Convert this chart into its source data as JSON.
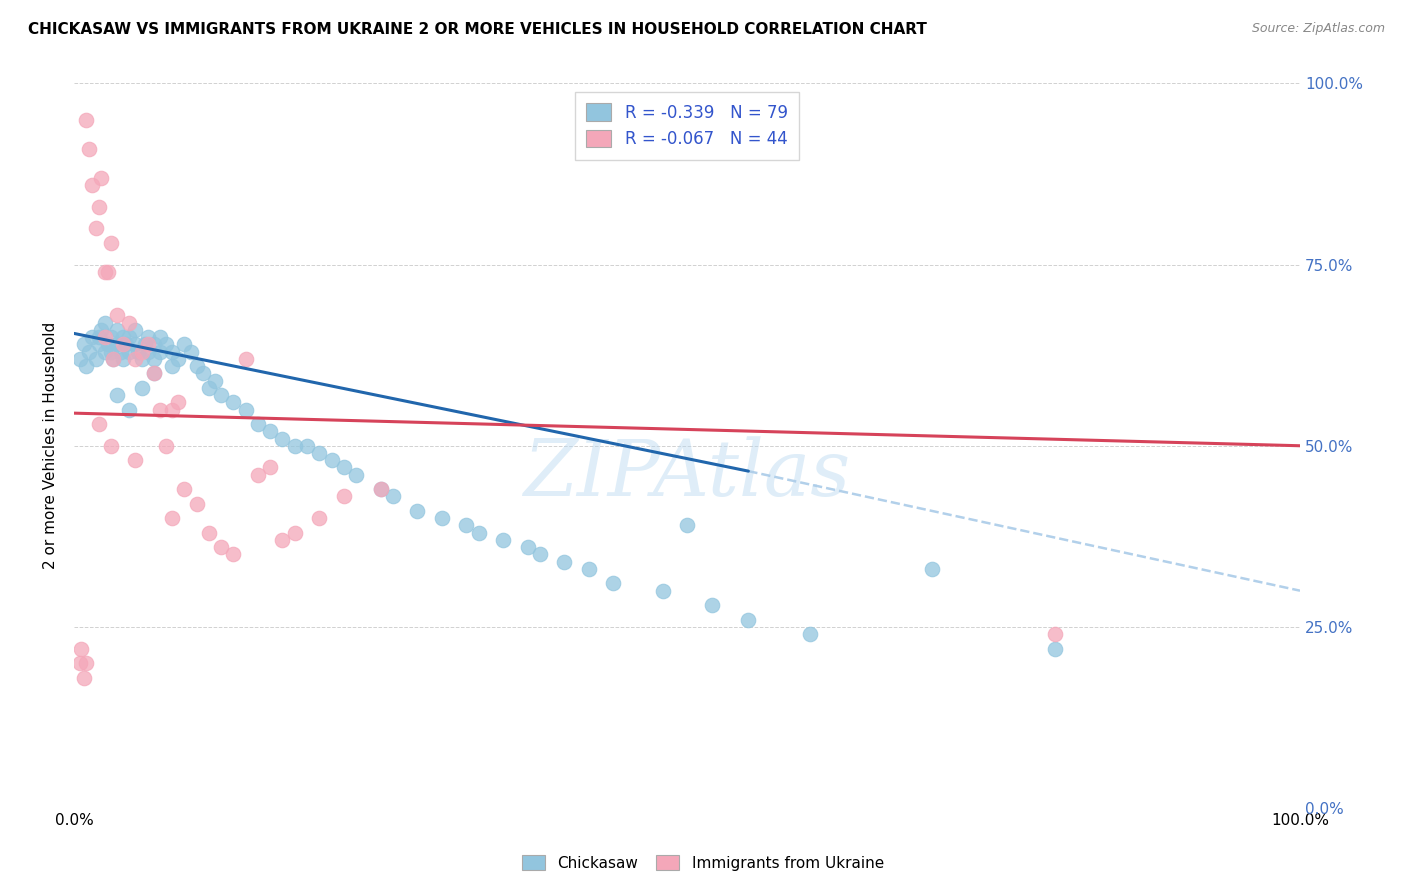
{
  "title": "CHICKASAW VS IMMIGRANTS FROM UKRAINE 2 OR MORE VEHICLES IN HOUSEHOLD CORRELATION CHART",
  "source": "Source: ZipAtlas.com",
  "ylabel": "2 or more Vehicles in Household",
  "ytick_values": [
    0,
    25,
    50,
    75,
    100
  ],
  "xlim": [
    0,
    100
  ],
  "ylim": [
    0,
    100
  ],
  "legend_label1": "Chickasaw",
  "legend_label2": "Immigrants from Ukraine",
  "R1": -0.339,
  "N1": 79,
  "R2": -0.067,
  "N2": 44,
  "color_blue": "#92C5DE",
  "color_pink": "#F4A7B9",
  "trend_color_blue": "#2166AC",
  "trend_color_pink": "#D6435A",
  "trend_color_dashed": "#AACBE8",
  "watermark": "ZIPAtlas",
  "blue_trend_x0": 0,
  "blue_trend_y0": 65.5,
  "blue_trend_x1": 55,
  "blue_trend_y1": 46.5,
  "pink_trend_x0": 0,
  "pink_trend_y0": 54.5,
  "pink_trend_x1": 100,
  "pink_trend_y1": 50.0,
  "dashed_x0": 55,
  "dashed_y0": 46.5,
  "dashed_x1": 100,
  "dashed_y1": 30.0,
  "chickasaw_x": [
    0.5,
    0.8,
    1.0,
    1.2,
    1.5,
    1.8,
    2.0,
    2.0,
    2.2,
    2.5,
    2.5,
    2.8,
    3.0,
    3.0,
    3.2,
    3.5,
    3.5,
    3.8,
    4.0,
    4.0,
    4.2,
    4.5,
    4.5,
    5.0,
    5.0,
    5.2,
    5.5,
    5.8,
    6.0,
    6.0,
    6.5,
    6.5,
    7.0,
    7.0,
    7.5,
    8.0,
    8.0,
    8.5,
    9.0,
    9.5,
    10.0,
    10.5,
    11.0,
    11.5,
    12.0,
    13.0,
    14.0,
    15.0,
    16.0,
    17.0,
    18.0,
    19.0,
    20.0,
    21.0,
    22.0,
    23.0,
    25.0,
    26.0,
    28.0,
    30.0,
    32.0,
    33.0,
    35.0,
    37.0,
    38.0,
    40.0,
    42.0,
    44.0,
    48.0,
    50.0,
    52.0,
    55.0,
    60.0,
    70.0,
    80.0,
    3.5,
    4.5,
    5.5,
    6.5
  ],
  "chickasaw_y": [
    62,
    64,
    61,
    63,
    65,
    62,
    65,
    64,
    66,
    63,
    67,
    64,
    65,
    63,
    62,
    66,
    64,
    63,
    65,
    62,
    64,
    63,
    65,
    64,
    66,
    63,
    62,
    64,
    65,
    63,
    64,
    62,
    65,
    63,
    64,
    63,
    61,
    62,
    64,
    63,
    61,
    60,
    58,
    59,
    57,
    56,
    55,
    53,
    52,
    51,
    50,
    50,
    49,
    48,
    47,
    46,
    44,
    43,
    41,
    40,
    39,
    38,
    37,
    36,
    35,
    34,
    33,
    31,
    30,
    39,
    28,
    26,
    24,
    33,
    22,
    57,
    55,
    58,
    60
  ],
  "ukraine_x": [
    0.5,
    0.8,
    1.0,
    1.2,
    1.5,
    1.8,
    2.0,
    2.2,
    2.5,
    2.8,
    3.0,
    3.2,
    3.5,
    4.0,
    4.5,
    5.0,
    5.5,
    6.0,
    6.5,
    7.0,
    7.5,
    8.0,
    8.5,
    9.0,
    10.0,
    11.0,
    12.0,
    13.0,
    14.0,
    15.0,
    16.0,
    17.0,
    18.0,
    20.0,
    22.0,
    25.0,
    80.0,
    0.6,
    1.0,
    2.0,
    2.5,
    3.0,
    5.0,
    8.0
  ],
  "ukraine_y": [
    20,
    18,
    95,
    91,
    86,
    80,
    83,
    87,
    74,
    74,
    78,
    62,
    68,
    64,
    67,
    62,
    63,
    64,
    60,
    55,
    50,
    55,
    56,
    44,
    42,
    38,
    36,
    35,
    62,
    46,
    47,
    37,
    38,
    40,
    43,
    44,
    24,
    22,
    20,
    53,
    65,
    50,
    48,
    40
  ]
}
